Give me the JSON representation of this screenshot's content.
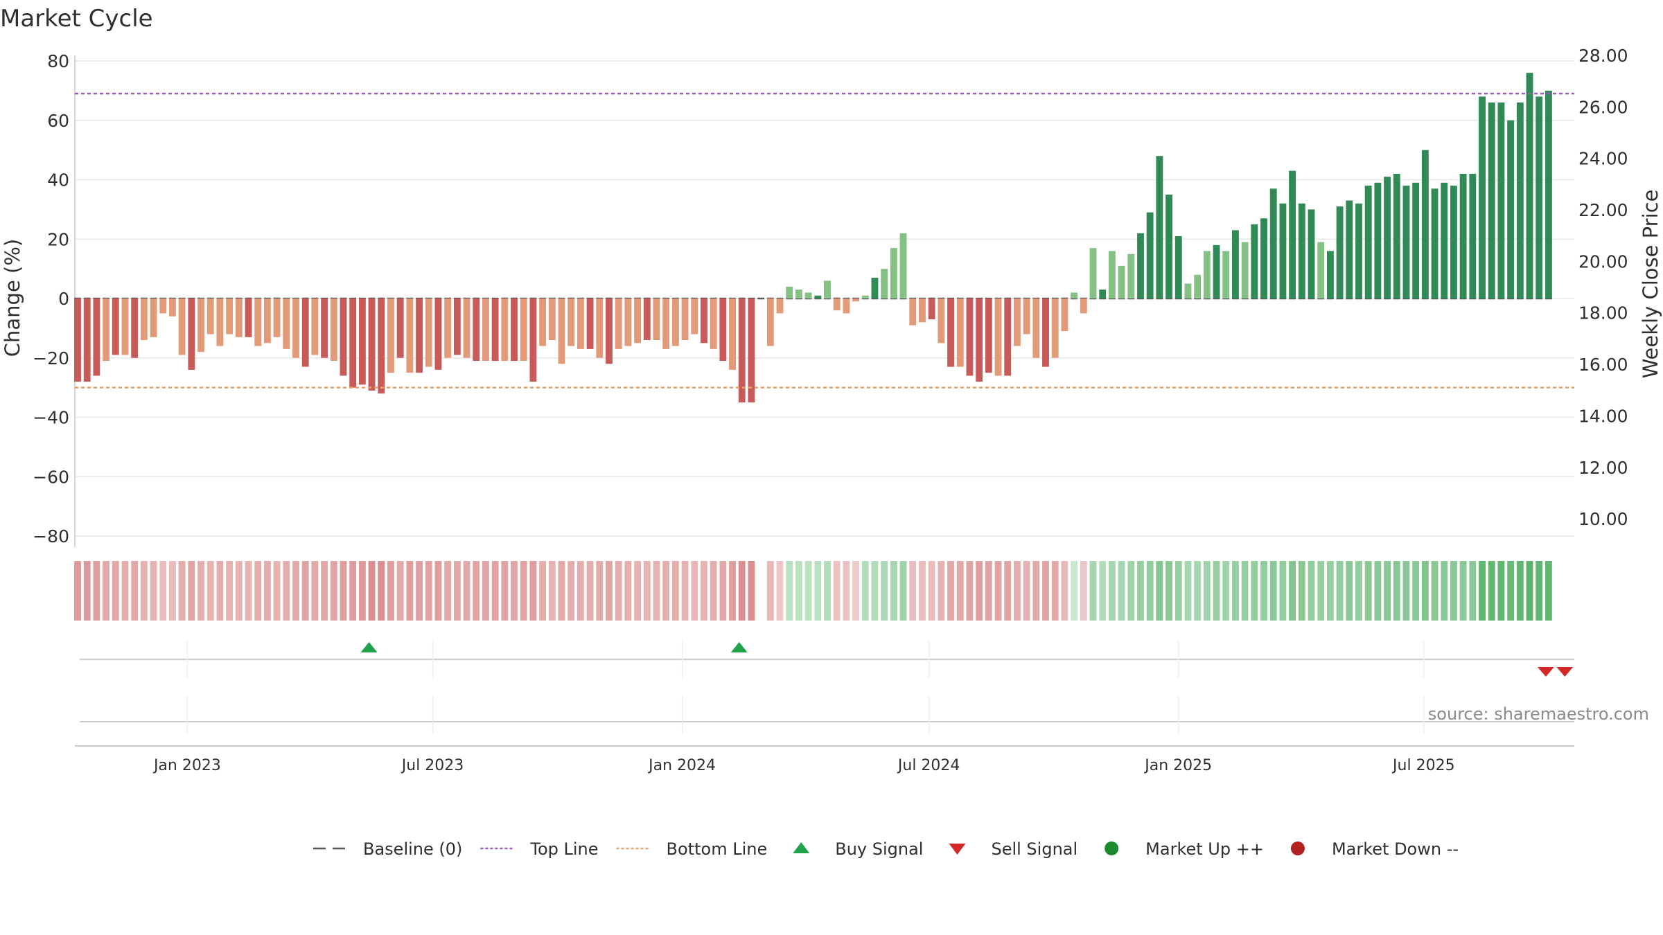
{
  "chart_data": {
    "type": "bar",
    "title": "Market Cycle",
    "ylabel": "Change (%)",
    "y2label": "Weekly Close Price",
    "ylim": [
      -80,
      80
    ],
    "y2lim": [
      9,
      28
    ],
    "yticks": [
      "80",
      "60",
      "40",
      "20",
      "0",
      "−20",
      "−40",
      "−60",
      "−80"
    ],
    "y2ticks": [
      "28.00",
      "26.00",
      "24.00",
      "22.00",
      "20.00",
      "18.00",
      "16.00",
      "14.00",
      "12.00",
      "10.00"
    ],
    "top_line": 69,
    "bottom_line": -30,
    "x_start": "2022-10-10",
    "x_end": "2025-10-20",
    "x_ticks": [
      {
        "label": "Jan 2023",
        "date": "2023-01-01"
      },
      {
        "label": "Jul 2023",
        "date": "2023-07-01"
      },
      {
        "label": "Jan 2024",
        "date": "2024-01-01"
      },
      {
        "label": "Jul 2024",
        "date": "2024-07-01"
      },
      {
        "label": "Jan 2025",
        "date": "2025-01-01"
      },
      {
        "label": "Jul 2025",
        "date": "2025-07-01"
      }
    ],
    "bar_start": "2022-10-10",
    "bar_interval_days": 7,
    "values": [
      -28,
      -28,
      -26,
      -21,
      -19,
      -19,
      -20,
      -14,
      -13,
      -5,
      -6,
      -19,
      -24,
      -18,
      -12,
      -16,
      -12,
      -13,
      -13,
      -16,
      -15,
      -13,
      -17,
      -20,
      -23,
      -19,
      -20,
      -21,
      -26,
      -30,
      -29,
      -31,
      -32,
      -25,
      -20,
      -25,
      -25,
      -23,
      -24,
      -20,
      -19,
      -20,
      -21,
      -21,
      -21,
      -21,
      -21,
      -21,
      -28,
      -16,
      -14,
      -22,
      -16,
      -17,
      -17,
      -20,
      -22,
      -17,
      -16,
      -15,
      -14,
      -14,
      -17,
      -16,
      -14,
      -12,
      -15,
      -17,
      -21,
      -24,
      -35,
      -35,
      null,
      -16,
      -5,
      4,
      3,
      2,
      1,
      6,
      -4,
      -5,
      -1,
      1,
      7,
      10,
      17,
      22,
      -9,
      -8,
      -7,
      -15,
      -23,
      -23,
      -26,
      -28,
      -25,
      -26,
      -26,
      -16,
      -12,
      -20,
      -23,
      -20,
      -11,
      2,
      -5,
      17,
      3,
      16,
      11,
      15,
      22,
      29,
      48,
      35,
      21,
      5,
      8,
      16,
      18,
      16,
      23,
      19,
      25,
      27,
      37,
      32,
      43,
      32,
      30,
      19,
      16,
      31,
      33,
      32,
      38,
      39,
      41,
      42,
      38,
      39,
      50,
      37,
      39,
      38,
      42,
      42,
      68,
      66,
      66,
      60,
      66,
      76,
      68,
      70
    ],
    "heatmap": [
      -0.6,
      -0.6,
      -0.55,
      -0.45,
      -0.45,
      -0.4,
      -0.45,
      -0.35,
      -0.35,
      -0.25,
      -0.25,
      -0.4,
      -0.5,
      -0.4,
      -0.35,
      -0.4,
      -0.35,
      -0.35,
      -0.35,
      -0.4,
      -0.4,
      -0.35,
      -0.4,
      -0.45,
      -0.5,
      -0.45,
      -0.45,
      -0.5,
      -0.55,
      -0.6,
      -0.6,
      -0.7,
      -0.7,
      -0.55,
      -0.45,
      -0.55,
      -0.55,
      -0.5,
      -0.55,
      -0.45,
      -0.45,
      -0.45,
      -0.5,
      -0.5,
      -0.5,
      -0.5,
      -0.5,
      -0.5,
      -0.55,
      -0.4,
      -0.35,
      -0.45,
      -0.4,
      -0.4,
      -0.4,
      -0.45,
      -0.5,
      -0.4,
      -0.4,
      -0.35,
      -0.35,
      -0.35,
      -0.4,
      -0.4,
      -0.35,
      -0.3,
      -0.35,
      -0.4,
      -0.45,
      -0.55,
      -0.7,
      -0.7,
      null,
      -0.3,
      -0.15,
      0.25,
      0.25,
      0.25,
      0.25,
      0.3,
      -0.2,
      -0.2,
      -0.1,
      0.3,
      0.3,
      0.35,
      0.4,
      0.45,
      -0.25,
      -0.25,
      -0.25,
      -0.35,
      -0.45,
      -0.45,
      -0.5,
      -0.55,
      -0.5,
      -0.5,
      -0.5,
      -0.4,
      -0.35,
      -0.45,
      -0.5,
      -0.45,
      -0.3,
      0.15,
      -0.15,
      0.4,
      0.3,
      0.4,
      0.4,
      0.45,
      0.5,
      0.55,
      0.65,
      0.6,
      0.5,
      0.4,
      0.4,
      0.45,
      0.5,
      0.45,
      0.5,
      0.5,
      0.55,
      0.55,
      0.6,
      0.55,
      0.65,
      0.6,
      0.55,
      0.5,
      0.5,
      0.55,
      0.6,
      0.55,
      0.6,
      0.6,
      0.6,
      0.6,
      0.6,
      0.6,
      0.65,
      0.6,
      0.6,
      0.6,
      0.6,
      0.6,
      0.9,
      0.9,
      0.9,
      0.85,
      0.9,
      0.95,
      0.9,
      0.9
    ],
    "buy_signals": [
      "2023-05-15",
      "2024-02-12"
    ],
    "sell_signals": [
      "2025-09-29",
      "2025-10-13"
    ],
    "legend": [
      {
        "label": "Baseline (0)",
        "kind": "dash-line",
        "color": "#555555"
      },
      {
        "label": "Top Line",
        "kind": "dot-line",
        "color": "#9b59b6"
      },
      {
        "label": "Bottom Line",
        "kind": "dot-line",
        "color": "#e8a06a"
      },
      {
        "label": "Buy Signal",
        "kind": "triangle-up",
        "color": "#1fa24a"
      },
      {
        "label": "Sell Signal",
        "kind": "triangle-down",
        "color": "#d62728"
      },
      {
        "label": "Market Up ++",
        "kind": "circle",
        "color": "#1b8a2a"
      },
      {
        "label": "Market Down --",
        "kind": "circle",
        "color": "#b22222"
      }
    ],
    "source": "source: sharemaestro.com",
    "colors": {
      "neg_strong": "#c85a5a",
      "neg_light": "#e39a78",
      "pos_strong": "#2f8a55",
      "pos_light": "#85c185",
      "top_line": "#9b59b6",
      "bottom_line": "#e8a06a",
      "baseline": "#555555",
      "buy": "#1fa24a",
      "sell": "#d62728",
      "grid": "#e6e6e6"
    }
  }
}
